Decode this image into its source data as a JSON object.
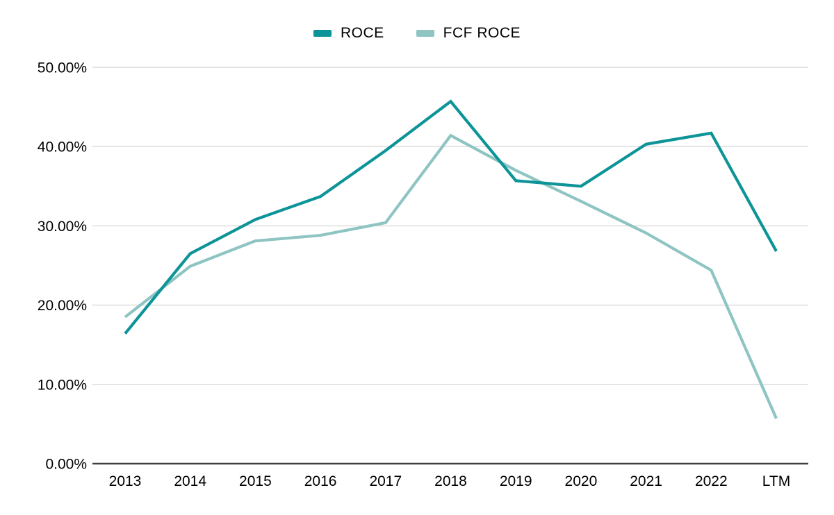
{
  "chart_data": {
    "type": "line",
    "categories": [
      "2013",
      "2014",
      "2015",
      "2016",
      "2017",
      "2018",
      "2019",
      "2020",
      "2021",
      "2022",
      "LTM"
    ],
    "series": [
      {
        "name": "ROCE",
        "color": "#0d9498",
        "values": [
          16.4,
          26.5,
          30.8,
          33.7,
          39.5,
          45.7,
          35.7,
          35.0,
          40.3,
          41.7,
          26.8
        ]
      },
      {
        "name": "FCF ROCE",
        "color": "#8ec5c2",
        "values": [
          18.5,
          24.9,
          28.1,
          28.8,
          30.4,
          41.4,
          37.0,
          33.1,
          29.1,
          24.4,
          5.7
        ]
      }
    ],
    "title": "",
    "xlabel": "",
    "ylabel": "",
    "ylim": [
      0,
      50
    ],
    "yticks": [
      {
        "value": 0,
        "label": "0.00%"
      },
      {
        "value": 10,
        "label": "10.00%"
      },
      {
        "value": 20,
        "label": "20.00%"
      },
      {
        "value": 30,
        "label": "30.00%"
      },
      {
        "value": 40,
        "label": "40.00%"
      },
      {
        "value": 50,
        "label": "50.00%"
      }
    ],
    "grid": "horizontal",
    "legend_position": "top-center",
    "colors": {
      "background": "#ffffff",
      "gridline": "#d9d9d9",
      "axis_line": "#404040",
      "label_text": "#000000"
    }
  }
}
